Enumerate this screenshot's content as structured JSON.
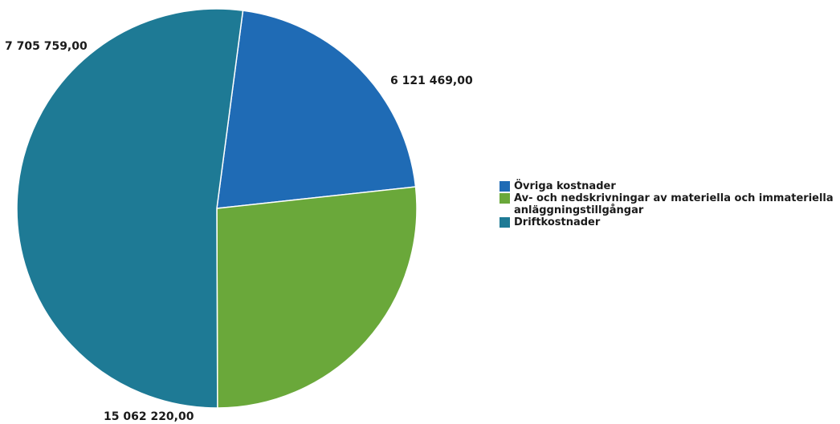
{
  "chart_data": {
    "type": "pie",
    "slices": [
      {
        "label": "Övriga kostnader",
        "value": 6121469.0,
        "value_label": "6 121 469,00",
        "color": "#1f6bb5"
      },
      {
        "label": "Av- och nedskrivningar av materiella och immateriella anläggningstillgångar",
        "value": 7705759.0,
        "value_label": "7 705 759,00",
        "color": "#6aa83a"
      },
      {
        "label": "Driftkostnader",
        "value": 15062220.0,
        "value_label": "15 062 220,00",
        "color": "#1e7a95"
      }
    ],
    "legend_position": "right"
  }
}
